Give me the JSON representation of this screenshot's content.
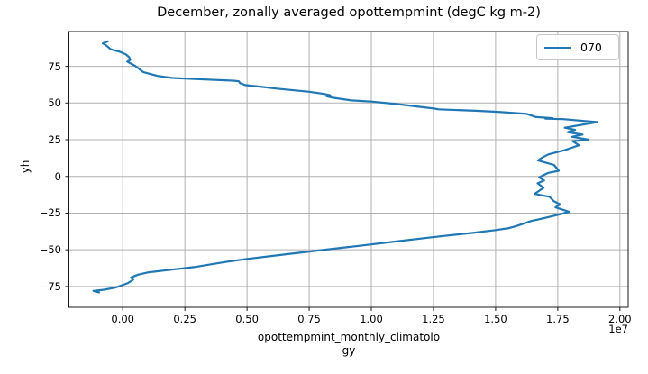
{
  "title": "December, zonally averaged opottempmint (degC kg m-2)",
  "legend": {
    "position": "upper right",
    "items": [
      {
        "label": "070",
        "color": "#1f77b4"
      }
    ]
  },
  "colors": {
    "line": "#1f77b4",
    "grid": "#b0b0b0",
    "spine": "#1a1a1a",
    "background": "#ffffff",
    "text": "#000000"
  },
  "chart_data": {
    "type": "line",
    "title": "December, zonally averaged opottempmint (degC kg m-2)",
    "xlabel": "opottempmint_monthly_climatology",
    "xlabel_lines": [
      "opottempmint_monthly_climatolo",
      "gy"
    ],
    "ylabel": "yh",
    "x_offset_text": "1e7",
    "x_unit": "values in units of 1e7 degC kg m-2",
    "xlim": [
      -0.2165,
      2.0333
    ],
    "ylim": [
      -89.2,
      98.7
    ],
    "grid": true,
    "legend_position": "upper right",
    "x_ticks": {
      "values": [
        0.0,
        0.25,
        0.5,
        0.75,
        1.0,
        1.25,
        1.5,
        1.75,
        2.0
      ],
      "labels": [
        "0.00",
        "0.25",
        "0.50",
        "0.75",
        "1.00",
        "1.25",
        "1.50",
        "1.75",
        "2.00"
      ]
    },
    "y_ticks": {
      "values": [
        75,
        50,
        25,
        0,
        -25,
        -50,
        -75
      ],
      "labels": [
        "75",
        "50",
        "25",
        "0",
        "−25",
        "−50",
        "−75"
      ]
    },
    "series": [
      {
        "name": "070",
        "color": "#1f77b4",
        "points": [
          [
            -0.06,
            92.0
          ],
          [
            -0.08,
            90.6
          ],
          [
            -0.068,
            89.4
          ],
          [
            -0.048,
            86.6
          ],
          [
            -0.01,
            84.8
          ],
          [
            0.012,
            83.2
          ],
          [
            0.026,
            81.2
          ],
          [
            0.03,
            79.4
          ],
          [
            0.018,
            78.2
          ],
          [
            0.05,
            75.3
          ],
          [
            0.066,
            73.2
          ],
          [
            0.082,
            71.1
          ],
          [
            0.14,
            68.5
          ],
          [
            0.2,
            67.1
          ],
          [
            0.3,
            66.3
          ],
          [
            0.45,
            65.2
          ],
          [
            0.467,
            64.8
          ],
          [
            0.472,
            63.6
          ],
          [
            0.492,
            62.2
          ],
          [
            0.56,
            61.0
          ],
          [
            0.62,
            59.8
          ],
          [
            0.75,
            57.7
          ],
          [
            0.81,
            56.2
          ],
          [
            0.835,
            55.3
          ],
          [
            0.82,
            54.6
          ],
          [
            0.845,
            53.6
          ],
          [
            0.92,
            51.8
          ],
          [
            1.0,
            51.0
          ],
          [
            1.1,
            49.3
          ],
          [
            1.255,
            46.2
          ],
          [
            1.27,
            45.7
          ],
          [
            1.42,
            44.7
          ],
          [
            1.51,
            44.0
          ],
          [
            1.625,
            42.6
          ],
          [
            1.663,
            40.4
          ],
          [
            1.73,
            39.7
          ],
          [
            1.7,
            39.4
          ],
          [
            1.772,
            39.0
          ],
          [
            1.91,
            37.0
          ],
          [
            1.86,
            35.6
          ],
          [
            1.778,
            33.2
          ],
          [
            1.82,
            31.7
          ],
          [
            1.79,
            30.1
          ],
          [
            1.85,
            28.5
          ],
          [
            1.808,
            27.0
          ],
          [
            1.874,
            25.0
          ],
          [
            1.81,
            24.0
          ],
          [
            1.835,
            21.2
          ],
          [
            1.78,
            18.0
          ],
          [
            1.712,
            15.0
          ],
          [
            1.688,
            12.9
          ],
          [
            1.67,
            10.9
          ],
          [
            1.7,
            9.5
          ],
          [
            1.735,
            7.8
          ],
          [
            1.754,
            3.8
          ],
          [
            1.712,
            2.4
          ],
          [
            1.675,
            -0.6
          ],
          [
            1.695,
            -2.8
          ],
          [
            1.669,
            -4.7
          ],
          [
            1.693,
            -7.7
          ],
          [
            1.657,
            -11.9
          ],
          [
            1.717,
            -13.9
          ],
          [
            1.735,
            -17.0
          ],
          [
            1.76,
            -19.0
          ],
          [
            1.741,
            -21.1
          ],
          [
            1.778,
            -23.1
          ],
          [
            1.796,
            -24.1
          ],
          [
            1.75,
            -26.2
          ],
          [
            1.675,
            -29.2
          ],
          [
            1.645,
            -30.3
          ],
          [
            1.61,
            -32.3
          ],
          [
            1.584,
            -33.8
          ],
          [
            1.554,
            -35.2
          ],
          [
            1.5,
            -36.6
          ],
          [
            1.4,
            -38.6
          ],
          [
            1.246,
            -41.4
          ],
          [
            1.1,
            -44.3
          ],
          [
            0.95,
            -47.3
          ],
          [
            0.8,
            -50.2
          ],
          [
            0.65,
            -53.2
          ],
          [
            0.5,
            -56.2
          ],
          [
            0.413,
            -58.3
          ],
          [
            0.286,
            -61.8
          ],
          [
            0.178,
            -63.9
          ],
          [
            0.105,
            -65.3
          ],
          [
            0.063,
            -66.9
          ],
          [
            0.033,
            -68.9
          ],
          [
            0.042,
            -70.5
          ],
          [
            0.021,
            -72.7
          ],
          [
            -0.028,
            -75.7
          ],
          [
            -0.075,
            -77.2
          ],
          [
            -0.118,
            -78.0
          ],
          [
            -0.095,
            -79.0
          ],
          [
            -0.112,
            -78.4
          ]
        ]
      }
    ]
  }
}
